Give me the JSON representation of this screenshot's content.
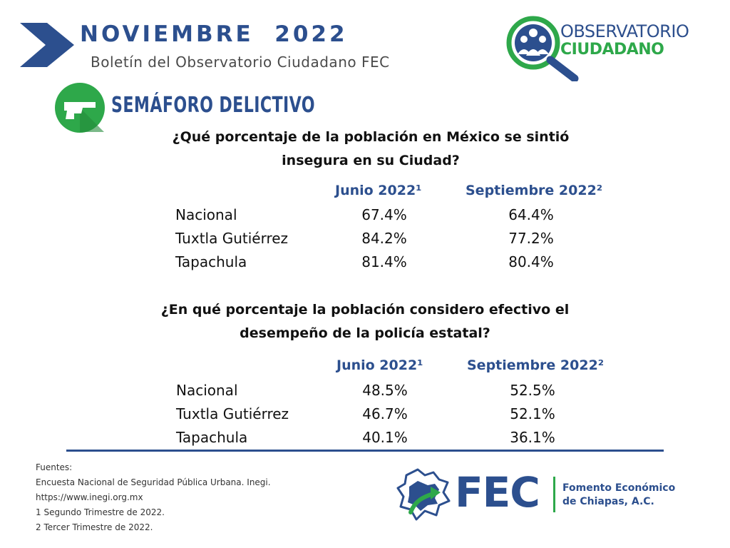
{
  "header": {
    "title": "NOVIEMBRE  2022",
    "subtitle": "Boletín del Observatorio Ciudadano FEC"
  },
  "logo": {
    "line1": "OBSERVATORIO",
    "line2": "CIUDADANO"
  },
  "section": {
    "title": "SEMÁFORO DELICTIVO",
    "icon": "gun-icon"
  },
  "tables": [
    {
      "question_line1": "¿Qué porcentaje de la población en México se sintió",
      "question_line2": "insegura en su Ciudad?",
      "col1": "Junio 2022¹",
      "col2": "Septiembre 2022²",
      "rows": [
        {
          "label": "Nacional",
          "v1": "67.4%",
          "v2": "64.4%"
        },
        {
          "label": "Tuxtla Gutiérrez",
          "v1": "84.2%",
          "v2": "77.2%"
        },
        {
          "label": "Tapachula",
          "v1": "81.4%",
          "v2": "80.4%"
        }
      ]
    },
    {
      "question_line1": "¿En qué porcentaje la población considero efectivo el",
      "question_line2": "desempeño de la policía estatal?",
      "col1": "Junio 2022¹",
      "col2": "Septiembre 2022²",
      "rows": [
        {
          "label": "Nacional",
          "v1": "48.5%",
          "v2": "52.5%"
        },
        {
          "label": "Tuxtla Gutiérrez",
          "v1": "46.7%",
          "v2": "52.1%"
        },
        {
          "label": "Tapachula",
          "v1": "40.1%",
          "v2": "36.1%"
        }
      ]
    }
  ],
  "footnotes": [
    "Fuentes:",
    "Encuesta Nacional de Seguridad Pública Urbana. Inegi.",
    "https://www.inegi.org.mx",
    "1 Segundo Trimestre de 2022.",
    "2 Tercer Trimestre de 2022."
  ],
  "fec": {
    "acronym": "FEC",
    "name_line1": "Fomento Económico",
    "name_line2": "de Chiapas, A.C."
  },
  "colors": {
    "brand_blue": "#2c4f8e",
    "brand_green": "#2ea84a"
  }
}
